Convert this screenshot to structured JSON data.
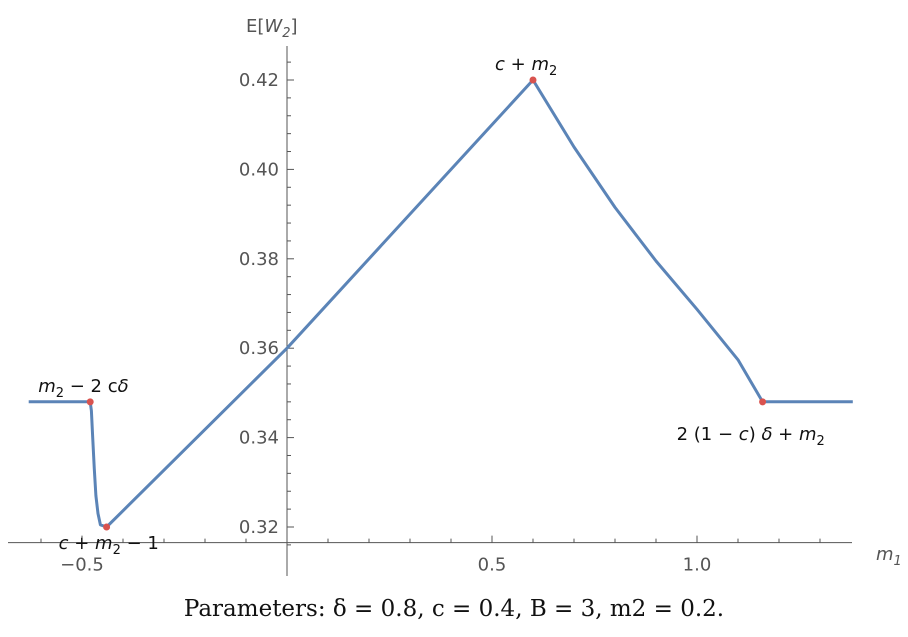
{
  "chart_data": {
    "type": "line",
    "title": "",
    "xlabel": "m1",
    "ylabel": "E[W2]",
    "xlim": [
      -0.64,
      1.4
    ],
    "ylim": [
      0.315,
      0.425
    ],
    "x_ticks": [
      {
        "value": -0.5,
        "label": "−0.5"
      },
      {
        "value": 0.5,
        "label": "0.5"
      },
      {
        "value": 1.0,
        "label": "1.0"
      }
    ],
    "y_ticks": [
      {
        "value": 0.32,
        "label": "0.32"
      },
      {
        "value": 0.34,
        "label": "0.34"
      },
      {
        "value": 0.36,
        "label": "0.36"
      },
      {
        "value": 0.38,
        "label": "0.38"
      },
      {
        "value": 0.4,
        "label": "0.40"
      },
      {
        "value": 0.42,
        "label": "0.42"
      }
    ],
    "series": [
      {
        "color": "#5b84b7",
        "points": [
          [
            -0.63,
            0.348
          ],
          [
            -0.48,
            0.348
          ],
          [
            -0.477,
            0.346
          ],
          [
            -0.474,
            0.34
          ],
          [
            -0.47,
            0.333
          ],
          [
            -0.466,
            0.327
          ],
          [
            -0.461,
            0.323
          ],
          [
            -0.455,
            0.3205
          ],
          [
            -0.44,
            0.32
          ],
          [
            0.0,
            0.36
          ],
          [
            0.6,
            0.42
          ],
          [
            0.7,
            0.405
          ],
          [
            0.8,
            0.3915
          ],
          [
            0.9,
            0.3795
          ],
          [
            1.0,
            0.3687
          ],
          [
            1.1,
            0.3574
          ],
          [
            1.16,
            0.348
          ],
          [
            1.38,
            0.348
          ]
        ]
      }
    ],
    "marked_points": [
      {
        "x": -0.48,
        "y": 0.348,
        "color": "#d9534f"
      },
      {
        "x": -0.44,
        "y": 0.32,
        "color": "#d9534f"
      },
      {
        "x": 0.6,
        "y": 0.42,
        "color": "#d9534f"
      },
      {
        "x": 1.16,
        "y": 0.348,
        "color": "#d9534f"
      }
    ],
    "annotations": [
      {
        "x": -0.48,
        "y": 0.348,
        "text": "m2 − 2 cδ"
      },
      {
        "x": -0.44,
        "y": 0.32,
        "text": "c + m2 − 1"
      },
      {
        "x": 0.6,
        "y": 0.42,
        "text": "c + m2"
      },
      {
        "x": 1.16,
        "y": 0.348,
        "text": "2 (1 − c) δ + m2"
      }
    ],
    "grid": false,
    "caption": "Parameters: δ = 0.8, c = 0.4, B = 3, m2 = 0.2."
  }
}
